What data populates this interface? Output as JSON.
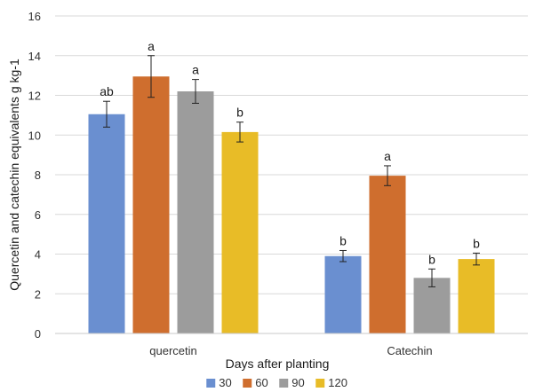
{
  "chart_data": {
    "type": "bar",
    "title": "",
    "xlabel": "Days after planting",
    "ylabel": "Quercetin and catechin equivalents g kg-1",
    "ylim": [
      0,
      16
    ],
    "ytick_step": 2,
    "grid": true,
    "legend_position": "bottom",
    "categories": [
      "quercetin",
      "Catechin"
    ],
    "series": [
      {
        "name": "30",
        "color": "#6a8fd0",
        "values": [
          11.05,
          3.9
        ],
        "errors": [
          0.65,
          0.28
        ],
        "labels": [
          "ab",
          "b"
        ]
      },
      {
        "name": "60",
        "color": "#cf6e2e",
        "values": [
          12.95,
          7.95
        ],
        "errors": [
          1.05,
          0.5
        ],
        "labels": [
          "a",
          "a"
        ]
      },
      {
        "name": "90",
        "color": "#9c9c9c",
        "values": [
          12.2,
          2.8
        ],
        "errors": [
          0.6,
          0.45
        ],
        "labels": [
          "a",
          "b"
        ]
      },
      {
        "name": "120",
        "color": "#e8bc27",
        "values": [
          10.15,
          3.75
        ],
        "errors": [
          0.5,
          0.3
        ],
        "labels": [
          "b",
          "b"
        ]
      }
    ]
  }
}
